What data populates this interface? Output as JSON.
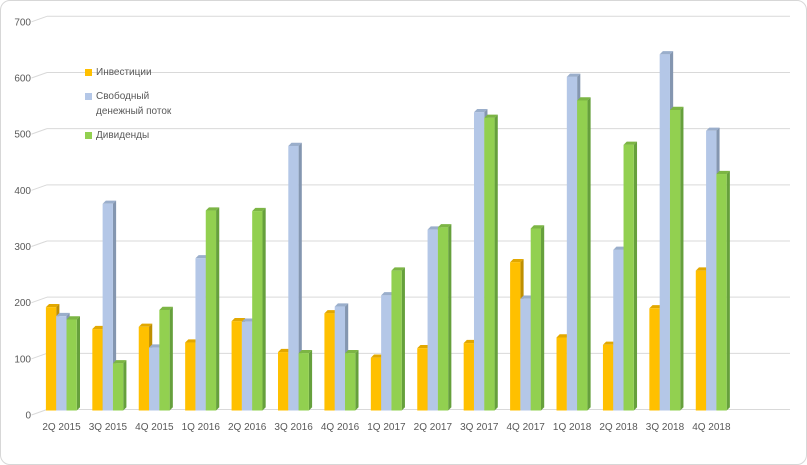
{
  "chart_data": {
    "type": "bar",
    "style": "3d-clustered-column",
    "title": "",
    "xlabel": "",
    "ylabel": "",
    "ylim": [
      0,
      700
    ],
    "ytick_step": 100,
    "grid": true,
    "legend_position": "inside-top-left",
    "axis_label_color": "#595959",
    "grid_color": "#d9d9d9",
    "categories": [
      "2Q 2015",
      "3Q 2015",
      "4Q 2015",
      "1Q 2016",
      "2Q 2016",
      "3Q 2016",
      "4Q 2016",
      "1Q 2017",
      "2Q 2017",
      "3Q 2017",
      "4Q 2017",
      "1Q 2018",
      "2Q 2018",
      "3Q 2018",
      "4Q 2018"
    ],
    "series": [
      {
        "name": "Инвестиции",
        "color": "#FFC000",
        "color_top": "#E2A800",
        "color_side": "#BF8F00",
        "values": [
          184,
          145,
          149,
          121,
          159,
          104,
          173,
          94,
          111,
          120,
          264,
          130,
          117,
          182,
          249
        ]
      },
      {
        "name": "Свободный денежный поток",
        "color": "#B4C7E7",
        "color_top": "#9AAECB",
        "color_side": "#8496B0",
        "values": [
          168,
          368,
          112,
          271,
          158,
          471,
          185,
          205,
          322,
          531,
          199,
          594,
          286,
          634,
          498
        ]
      },
      {
        "name": "Дивиденды",
        "color": "#92D050",
        "color_top": "#7CB544",
        "color_side": "#66A03C",
        "values": [
          162,
          84,
          179,
          356,
          355,
          102,
          102,
          249,
          326,
          521,
          324,
          552,
          473,
          535,
          421
        ]
      }
    ]
  }
}
